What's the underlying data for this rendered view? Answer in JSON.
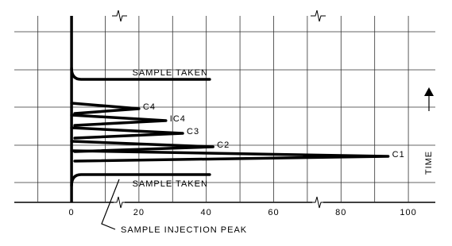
{
  "chart_data": {
    "type": "chromatogram",
    "categories": [
      "C4",
      "IC4",
      "C3",
      "C2",
      "C1"
    ],
    "values": [
      20,
      28,
      33,
      42,
      94
    ],
    "sample_marks": {
      "label": "SAMPLE TAKEN",
      "values": [
        41,
        41
      ]
    },
    "annotation": "SAMPLE INJECTION PEAK",
    "y_label": "TIME",
    "xlim": [
      -17,
      108
    ],
    "xticks": [
      0,
      20,
      40,
      60,
      80,
      100
    ],
    "grid": true,
    "color": "#000000"
  }
}
